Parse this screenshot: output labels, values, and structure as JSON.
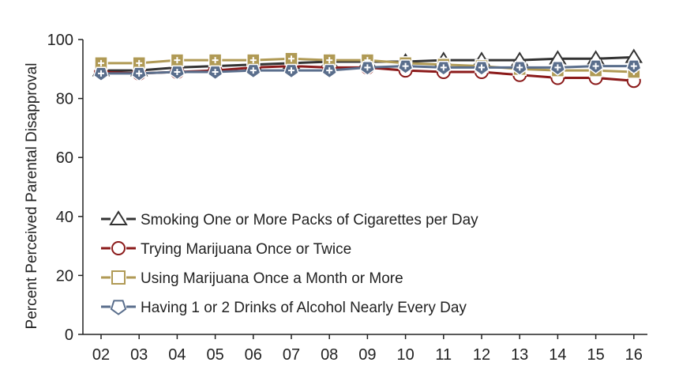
{
  "chart_data": {
    "type": "line",
    "title": "",
    "xlabel": "",
    "ylabel": "Percent Perceived Parental Disapproval",
    "ylim": [
      0,
      100
    ],
    "yticks": [
      0,
      20,
      40,
      60,
      80,
      100
    ],
    "grid": false,
    "legend_position": "lower-left",
    "categories": [
      "02",
      "03",
      "04",
      "05",
      "06",
      "07",
      "08",
      "09",
      "10",
      "11",
      "12",
      "13",
      "14",
      "15",
      "16"
    ],
    "series": [
      {
        "name": "Smoking One or More Packs of Cigarettes per Day",
        "color": "#333333",
        "marker": "triangle",
        "values": [
          89.5,
          89.5,
          90.5,
          91.0,
          91.5,
          92.0,
          92.5,
          92.5,
          92.5,
          93.0,
          93.0,
          93.0,
          93.5,
          93.5,
          94.0
        ]
      },
      {
        "name": "Trying Marijuana Once or Twice",
        "color": "#8b1a1a",
        "marker": "circle",
        "values": [
          89.0,
          88.5,
          89.0,
          89.5,
          90.5,
          91.0,
          90.5,
          90.5,
          89.5,
          89.0,
          89.0,
          88.0,
          87.0,
          87.0,
          86.0
        ]
      },
      {
        "name": "Using Marijuana Once a Month or More",
        "color": "#b09a55",
        "marker": "square",
        "values": [
          92.0,
          92.0,
          93.0,
          93.0,
          93.0,
          93.5,
          93.0,
          93.0,
          92.0,
          91.5,
          91.0,
          90.0,
          89.5,
          89.5,
          89.0
        ]
      },
      {
        "name": "Having 1 or 2 Drinks of Alcohol Nearly Every Day",
        "color": "#5a6e8c",
        "marker": "pentagon",
        "values": [
          88.5,
          88.5,
          89.0,
          89.0,
          89.5,
          89.5,
          89.5,
          90.5,
          91.0,
          90.5,
          90.5,
          90.5,
          90.5,
          91.0,
          91.0
        ]
      }
    ]
  }
}
